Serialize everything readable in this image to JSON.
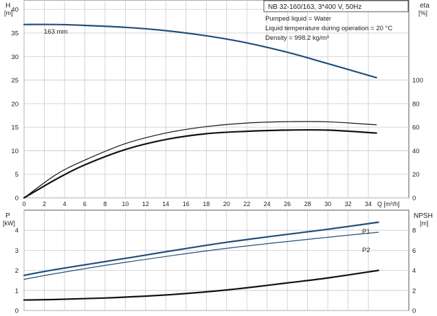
{
  "chart_data": [
    {
      "type": "line",
      "panel": "head-efficiency",
      "title": "NB 32-160/163, 3*400 V, 50Hz",
      "info_lines": [
        "Pumped liquid = Water",
        "Liquid temperature during operation = 20 °C",
        "Density = 998.2 kg/m³"
      ],
      "xlabel": "Q [m³/h]",
      "xticks": [
        0,
        2,
        4,
        6,
        8,
        10,
        12,
        14,
        16,
        18,
        20,
        22,
        24,
        26,
        28,
        30,
        32,
        34
      ],
      "xlim": [
        0,
        38
      ],
      "ylabel_left": [
        "H",
        "[m]"
      ],
      "yticks_left": [
        0,
        5,
        10,
        15,
        20,
        25,
        30,
        35,
        40
      ],
      "ylim_left": [
        0,
        42
      ],
      "ylabel_right": [
        "eta",
        "[%]"
      ],
      "yticks_right": [
        0,
        20,
        40,
        60,
        80,
        100
      ],
      "ylim_right": [
        0,
        168
      ],
      "grid": true,
      "series": [
        {
          "name": "163 mm",
          "color": "#1f4e79",
          "axis": "left",
          "x": [
            0,
            3.2,
            6,
            10,
            14,
            18,
            22,
            26,
            30,
            34.8
          ],
          "y": [
            36.8,
            36.8,
            36.6,
            36.2,
            35.5,
            34.4,
            32.9,
            30.9,
            28.5,
            25.5
          ]
        },
        {
          "name": "",
          "color": "#111111",
          "axis": "right",
          "x": [
            0,
            3.2,
            6,
            10,
            14,
            18,
            22,
            26,
            30,
            34.8
          ],
          "y": [
            0,
            20,
            32,
            46,
            55,
            60.5,
            63.5,
            64.7,
            64.6,
            62
          ]
        },
        {
          "name": "",
          "color": "#111111",
          "axis": "right",
          "x": [
            0,
            3.2,
            6,
            10,
            14,
            18,
            22,
            26,
            30,
            34.8
          ],
          "y": [
            0,
            16,
            28,
            41,
            49.5,
            54.5,
            56.5,
            57.5,
            57.5,
            55
          ]
        }
      ]
    },
    {
      "type": "line",
      "panel": "power-npsh",
      "xlabel": "",
      "xticks": [
        0,
        2,
        4,
        6,
        8,
        10,
        12,
        14,
        16,
        18,
        20,
        22,
        24,
        26,
        28,
        30,
        32,
        34
      ],
      "xlim": [
        0,
        38
      ],
      "ylabel_left": [
        "P",
        "[kW]"
      ],
      "yticks_left": [
        0,
        1,
        2,
        3,
        4
      ],
      "ylim_left": [
        0,
        5
      ],
      "ylabel_right": [
        "NPSH",
        "[m]"
      ],
      "yticks_right": [
        0,
        2,
        4,
        6,
        8
      ],
      "ylim_right": [
        0,
        10
      ],
      "grid": true,
      "series": [
        {
          "name": "P1",
          "color": "#1f4e79",
          "axis": "left",
          "x": [
            0,
            3.2,
            10,
            20,
            30,
            35
          ],
          "y": [
            1.75,
            2.05,
            2.6,
            3.4,
            4.05,
            4.4
          ]
        },
        {
          "name": "P2",
          "color": "#1f4e79",
          "axis": "left",
          "x": [
            0,
            3.2,
            10,
            20,
            30,
            35
          ],
          "y": [
            1.55,
            1.85,
            2.4,
            3.1,
            3.65,
            3.9
          ]
        },
        {
          "name": "",
          "color": "#111111",
          "axis": "right",
          "x": [
            0,
            3.2,
            8,
            14,
            20,
            26,
            30,
            35
          ],
          "y": [
            1.05,
            1.1,
            1.25,
            1.55,
            2.05,
            2.75,
            3.25,
            4.0
          ]
        }
      ]
    }
  ]
}
